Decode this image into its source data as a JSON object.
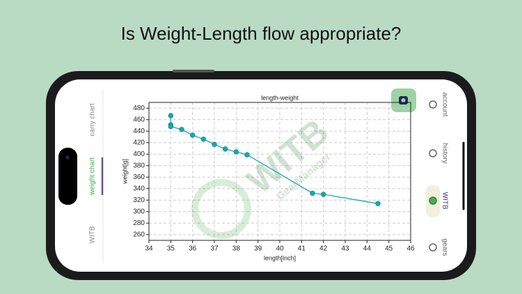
{
  "headline": "Is Weight-Length flow appropriate?",
  "side_tabs": [
    "carry chart",
    "weight chart",
    "WITB"
  ],
  "selected_tab": 1,
  "nav": [
    "account",
    "history",
    "WITB",
    "gears"
  ],
  "selected_nav": 2,
  "watermark": {
    "logo": "WITB",
    "sub": "GearManager"
  },
  "chart_data": {
    "type": "line",
    "title": "length-weight",
    "x_label": "length[inch]",
    "y_label": "weight[g]",
    "x": [
      35,
      35,
      35,
      35.5,
      36,
      36.5,
      37,
      37.5,
      38,
      38.5,
      41.5,
      42,
      44.5
    ],
    "series": [
      {
        "name": "weight",
        "color": "#17a9b3",
        "values": [
          467,
          451,
          448,
          443,
          433,
          426,
          417,
          409,
          404,
          399,
          332,
          330,
          314
        ]
      }
    ],
    "xlim": [
      34,
      46
    ],
    "ylim": [
      250,
      490
    ],
    "xticks": [
      34,
      35,
      36,
      37,
      38,
      39,
      40,
      41,
      42,
      43,
      44,
      45,
      46
    ],
    "yticks": [
      260,
      280,
      300,
      320,
      340,
      360,
      380,
      400,
      420,
      440,
      460,
      480
    ],
    "grid": true
  }
}
